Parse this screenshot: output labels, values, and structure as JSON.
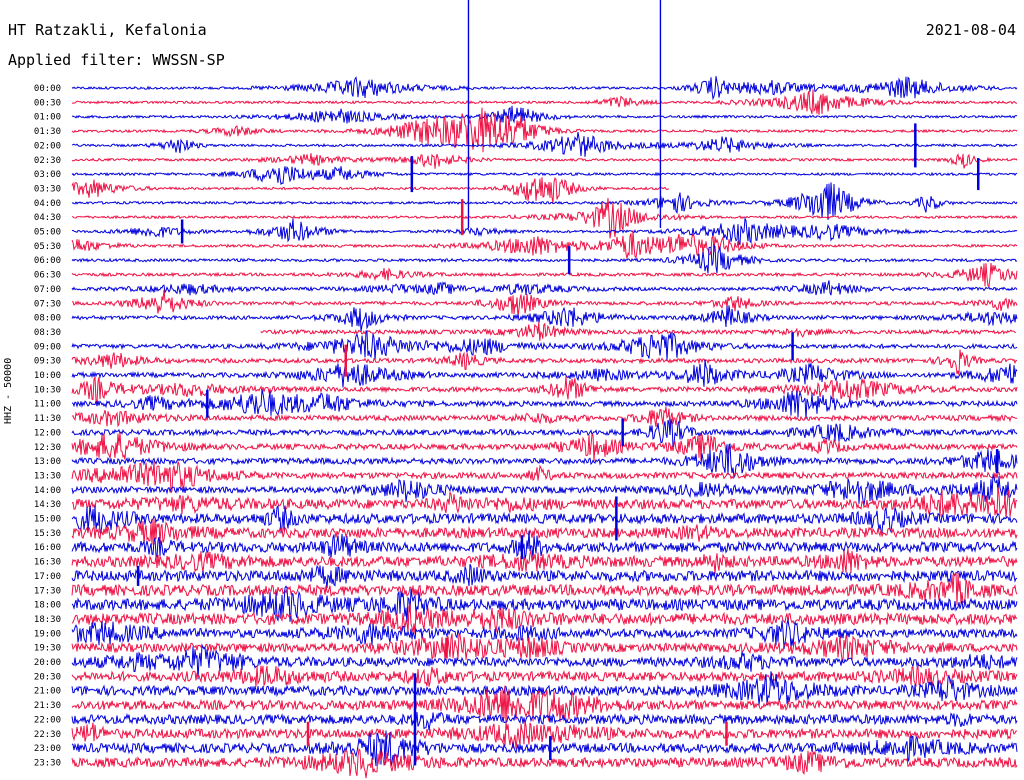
{
  "header": {
    "station": "HT Ratzakli, Kefalonia",
    "filter": "Applied filter: WWSSN-SP",
    "date": "2021-08-04",
    "channel": "HHZ - 50000"
  },
  "chart_data": {
    "type": "line",
    "title": "HT Ratzakli, Kefalonia",
    "subtitle": "Applied filter: WWSSN-SP",
    "date": "2021-08-04",
    "ylabel": "HHZ - 50000",
    "rows": [
      "00:00",
      "00:30",
      "01:00",
      "01:30",
      "02:00",
      "02:30",
      "03:00",
      "03:30",
      "04:00",
      "04:30",
      "05:00",
      "05:30",
      "06:00",
      "06:30",
      "07:00",
      "07:30",
      "08:00",
      "08:30",
      "09:00",
      "09:30",
      "10:00",
      "10:30",
      "11:00",
      "11:30",
      "12:00",
      "12:30",
      "13:00",
      "13:30",
      "14:00",
      "14:30",
      "15:00",
      "15:30",
      "16:00",
      "16:30",
      "17:00",
      "17:30",
      "18:00",
      "18:30",
      "19:00",
      "19:30",
      "20:00",
      "20:30",
      "21:00",
      "21:30",
      "22:00",
      "22:30",
      "23:00",
      "23:30"
    ],
    "row_minutes": 30,
    "colors": [
      "#0000dd",
      "#ee1144"
    ],
    "gap_row": 7,
    "gap_start_min": 19,
    "gap_end_min": 30,
    "gap_row_b": 17,
    "gap_b_start_min": 0,
    "gap_b_end_min": 6,
    "events": [
      {
        "row": 0,
        "minute": 12.6,
        "amp": 140
      },
      {
        "row": 0,
        "minute": 18.7,
        "amp": 140
      },
      {
        "row": 4,
        "minute": 26.8,
        "amp": 22
      },
      {
        "row": 6,
        "minute": 10.8,
        "amp": 18
      },
      {
        "row": 6,
        "minute": 28.8,
        "amp": 16
      },
      {
        "row": 9,
        "minute": 12.4,
        "amp": 18
      },
      {
        "row": 10,
        "minute": 3.5,
        "amp": 12
      },
      {
        "row": 12,
        "minute": 15.8,
        "amp": 14
      },
      {
        "row": 18,
        "minute": 22.9,
        "amp": 14
      },
      {
        "row": 19,
        "minute": 8.7,
        "amp": 16
      },
      {
        "row": 22,
        "minute": 4.3,
        "amp": 14
      },
      {
        "row": 24,
        "minute": 17.5,
        "amp": 14
      },
      {
        "row": 26,
        "minute": 29.4,
        "amp": 12
      },
      {
        "row": 30,
        "minute": 17.3,
        "amp": 22
      },
      {
        "row": 32,
        "minute": 14.3,
        "amp": 12
      },
      {
        "row": 34,
        "minute": 2.1,
        "amp": 10
      },
      {
        "row": 39,
        "minute": 11.9,
        "amp": 10
      },
      {
        "row": 44,
        "minute": 10.9,
        "amp": 46
      },
      {
        "row": 45,
        "minute": 7.5,
        "amp": 12
      },
      {
        "row": 46,
        "minute": 15.2,
        "amp": 12
      },
      {
        "row": 45,
        "minute": 20.8,
        "amp": 12
      }
    ]
  }
}
